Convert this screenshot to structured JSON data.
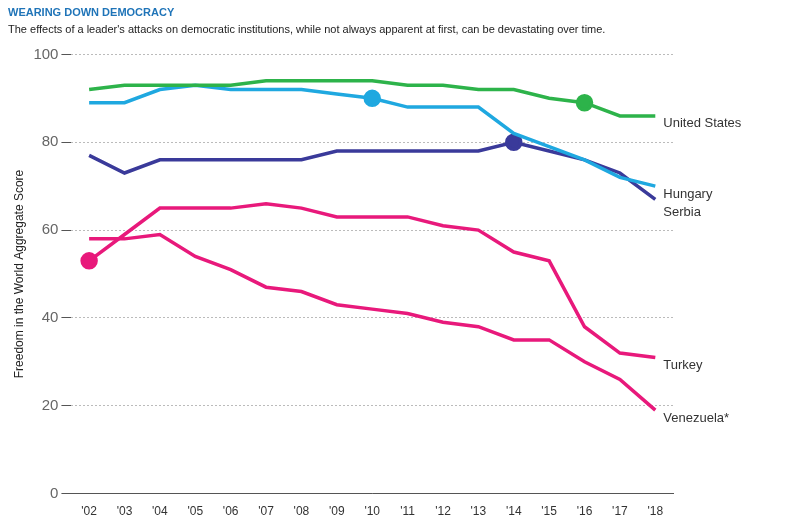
{
  "chart_data": {
    "type": "line",
    "title": "WEARING DOWN DEMOCRACY",
    "subtitle": "The effects of a leader's attacks on democratic institutions, while not always apparent at first, can be devastating over time.",
    "y_label": "Freedom in the World Aggregate Score",
    "categories": [
      "'02",
      "'03",
      "'04",
      "'05",
      "'06",
      "'07",
      "'08",
      "'09",
      "'10",
      "'11",
      "'12",
      "'13",
      "'14",
      "'15",
      "'16",
      "'17",
      "'18"
    ],
    "ylim": [
      0,
      100
    ],
    "yticks": [
      0,
      20,
      40,
      60,
      80,
      100
    ],
    "grid": true,
    "series": [
      {
        "name": "United States",
        "color": "#2db34a",
        "highlight": "'16",
        "values": [
          92,
          93,
          93,
          93,
          93,
          94,
          94,
          94,
          94,
          93,
          93,
          92,
          92,
          90,
          89,
          86,
          86
        ]
      },
      {
        "name": "Hungary",
        "color": "#1fa8e0",
        "highlight": "'10",
        "values": [
          89,
          89,
          92,
          93,
          92,
          92,
          92,
          91,
          90,
          88,
          88,
          88,
          82,
          79,
          76,
          72,
          70
        ]
      },
      {
        "name": "Serbia",
        "color": "#3a3a9a",
        "highlight": "'14",
        "values": [
          77,
          73,
          76,
          76,
          76,
          76,
          76,
          78,
          78,
          78,
          78,
          78,
          80,
          78,
          76,
          73,
          67
        ]
      },
      {
        "name": "Turkey",
        "color": "#e8197b",
        "highlight": "'02",
        "values": [
          53,
          59,
          65,
          65,
          65,
          66,
          65,
          63,
          63,
          63,
          61,
          60,
          55,
          53,
          38,
          32,
          31
        ]
      },
      {
        "name": "Venezuela*",
        "color": "#e8197b",
        "values": [
          58,
          58,
          59,
          54,
          51,
          47,
          46,
          43,
          42,
          41,
          39,
          38,
          35,
          35,
          30,
          26,
          19
        ]
      }
    ]
  }
}
